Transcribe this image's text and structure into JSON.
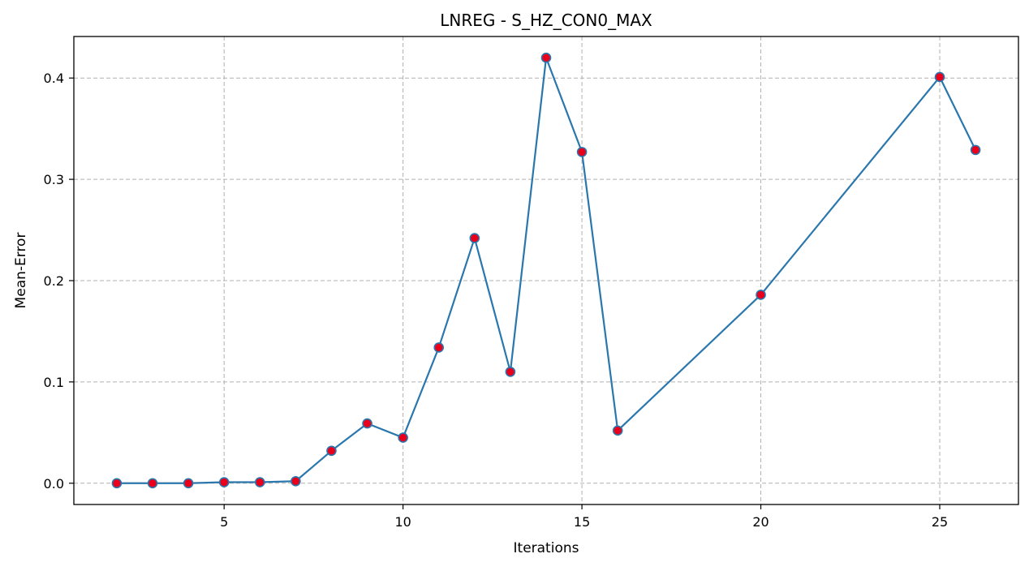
{
  "chart_data": {
    "type": "line",
    "title": "LNREG - S_HZ_CON0_MAX",
    "xlabel": "Iterations",
    "ylabel": "Mean-Error",
    "xlim": [
      0.8,
      27.2
    ],
    "ylim": [
      -0.021,
      0.441
    ],
    "xticks": [
      5,
      10,
      15,
      20,
      25
    ],
    "yticks": [
      0.0,
      0.1,
      0.2,
      0.3,
      0.4
    ],
    "ytick_labels": [
      "0.0",
      "0.1",
      "0.2",
      "0.3",
      "0.4"
    ],
    "grid": true,
    "line_color": "#2a77ad",
    "marker_face_color": "#e8001c",
    "marker_edge_color": "#2a77ad",
    "x": [
      2,
      3,
      4,
      5,
      6,
      7,
      8,
      9,
      10,
      11,
      12,
      13,
      14,
      15,
      16,
      20,
      25,
      26
    ],
    "y": [
      0.0,
      0.0,
      0.0,
      0.001,
      0.001,
      0.002,
      0.032,
      0.059,
      0.045,
      0.134,
      0.242,
      0.11,
      0.42,
      0.327,
      0.052,
      0.186,
      0.401,
      0.329
    ]
  }
}
